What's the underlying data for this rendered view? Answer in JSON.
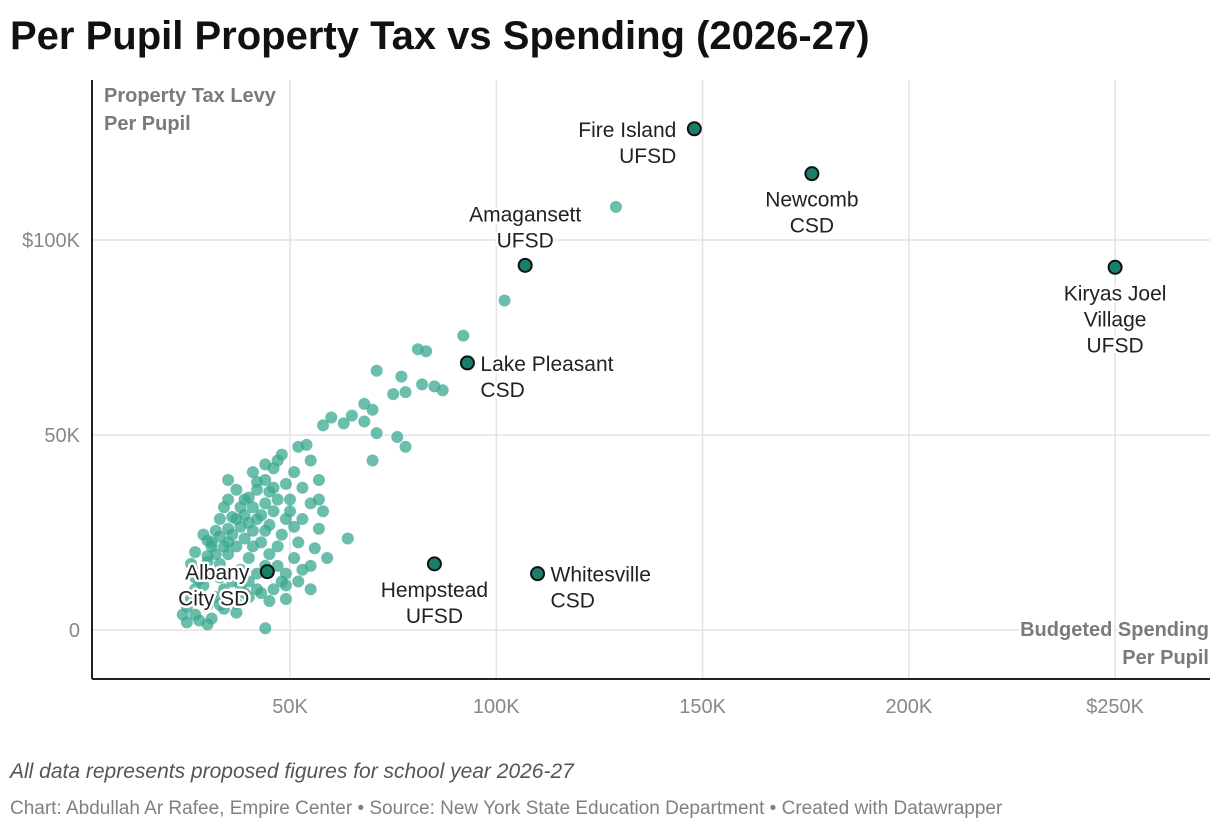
{
  "title": "Per Pupil Property Tax vs Spending (2026-27)",
  "footnote": "All data represents proposed figures for school year 2026-27",
  "credits": "Chart: Abdullah Ar Rafee, Empire Center • Source: New York State Education Department • Created with Datawrapper",
  "chart_data": {
    "type": "scatter",
    "x_axis": {
      "label_lines": [
        "Budgeted Spending",
        "Per Pupil"
      ],
      "range": [
        2000,
        273000
      ],
      "ticks": [
        50000,
        100000,
        150000,
        200000,
        250000
      ],
      "tick_labels": [
        "50K",
        "100K",
        "150K",
        "200K",
        "$250K"
      ]
    },
    "y_axis": {
      "label_lines": [
        "Property Tax Levy",
        "Per Pupil"
      ],
      "range": [
        -12500,
        141000
      ],
      "ticks": [
        0,
        50000,
        100000
      ],
      "tick_labels": [
        "0",
        "50K",
        "$100K"
      ]
    },
    "grid": true,
    "colors": {
      "point": "#3aa890",
      "highlight": "#1a7f68",
      "highlight_stroke": "#111111",
      "grid": "#e3e3e3",
      "axis": "#222222"
    },
    "highlighted": [
      {
        "name_lines": [
          "Fire Island",
          "UFSD"
        ],
        "x": 148000,
        "y": 128500,
        "label_pos": "left"
      },
      {
        "name_lines": [
          "Newcomb",
          "CSD"
        ],
        "x": 176500,
        "y": 117000,
        "label_pos": "below"
      },
      {
        "name_lines": [
          "Kiryas Joel",
          "Village",
          "UFSD"
        ],
        "x": 250000,
        "y": 93000,
        "label_pos": "below"
      },
      {
        "name_lines": [
          "Amagansett",
          "UFSD"
        ],
        "x": 107000,
        "y": 93500,
        "label_pos": "above"
      },
      {
        "name_lines": [
          "Lake Pleasant",
          "CSD"
        ],
        "x": 93000,
        "y": 68500,
        "label_pos": "right"
      },
      {
        "name_lines": [
          "Albany",
          "City SD"
        ],
        "x": 44500,
        "y": 15000,
        "label_pos": "left"
      },
      {
        "name_lines": [
          "Hempstead",
          "UFSD"
        ],
        "x": 85000,
        "y": 17000,
        "label_pos": "below"
      },
      {
        "name_lines": [
          "Whitesville",
          "CSD"
        ],
        "x": 110000,
        "y": 14500,
        "label_pos": "right"
      }
    ],
    "points": [
      [
        129000,
        108500
      ],
      [
        102000,
        84500
      ],
      [
        92000,
        75500
      ],
      [
        81000,
        72000
      ],
      [
        83000,
        71500
      ],
      [
        71000,
        66500
      ],
      [
        77000,
        65000
      ],
      [
        82000,
        63000
      ],
      [
        85000,
        62500
      ],
      [
        87000,
        61500
      ],
      [
        75000,
        60500
      ],
      [
        78000,
        61000
      ],
      [
        68000,
        58000
      ],
      [
        70000,
        56500
      ],
      [
        65000,
        55000
      ],
      [
        60000,
        54500
      ],
      [
        58000,
        52500
      ],
      [
        63000,
        53000
      ],
      [
        68000,
        53500
      ],
      [
        71000,
        50500
      ],
      [
        76000,
        49500
      ],
      [
        78000,
        47000
      ],
      [
        70000,
        43500
      ],
      [
        64000,
        23500
      ],
      [
        57000,
        33500
      ],
      [
        57000,
        38500
      ],
      [
        55000,
        43500
      ],
      [
        54000,
        47500
      ],
      [
        52000,
        47000
      ],
      [
        48000,
        45000
      ],
      [
        46000,
        41500
      ],
      [
        44000,
        38500
      ],
      [
        42000,
        36000
      ],
      [
        40000,
        34000
      ],
      [
        38000,
        31500
      ],
      [
        36000,
        29000
      ],
      [
        35000,
        26000
      ],
      [
        33000,
        24000
      ],
      [
        31000,
        21500
      ],
      [
        30000,
        19000
      ],
      [
        29000,
        16000
      ],
      [
        28000,
        13000
      ],
      [
        27000,
        10500
      ],
      [
        26000,
        8000
      ],
      [
        25000,
        6000
      ],
      [
        24000,
        4000
      ],
      [
        25000,
        2000
      ],
      [
        30000,
        1500
      ],
      [
        44000,
        500
      ],
      [
        27000,
        4000
      ],
      [
        28000,
        2500
      ],
      [
        31000,
        3000
      ],
      [
        34000,
        5500
      ],
      [
        37000,
        7000
      ],
      [
        40000,
        8500
      ],
      [
        43000,
        9500
      ],
      [
        46000,
        10500
      ],
      [
        49000,
        11500
      ],
      [
        52000,
        12500
      ],
      [
        55000,
        10500
      ],
      [
        49000,
        8000
      ],
      [
        55000,
        16500
      ],
      [
        59000,
        18500
      ],
      [
        56000,
        21000
      ],
      [
        52000,
        22500
      ],
      [
        48000,
        24500
      ],
      [
        45000,
        27000
      ],
      [
        43000,
        29500
      ],
      [
        41000,
        31500
      ],
      [
        39000,
        33500
      ],
      [
        37000,
        36000
      ],
      [
        35000,
        38500
      ],
      [
        41000,
        40500
      ],
      [
        44000,
        42500
      ],
      [
        47000,
        43500
      ],
      [
        51000,
        40500
      ],
      [
        53000,
        36500
      ],
      [
        55000,
        32500
      ],
      [
        58000,
        30500
      ],
      [
        57000,
        26000
      ],
      [
        53000,
        28500
      ],
      [
        50000,
        30500
      ],
      [
        47000,
        33500
      ],
      [
        45000,
        35500
      ],
      [
        42000,
        38000
      ],
      [
        33000,
        28500
      ],
      [
        29000,
        24500
      ],
      [
        27000,
        20000
      ],
      [
        26000,
        17000
      ],
      [
        31000,
        14500
      ],
      [
        33000,
        17000
      ],
      [
        35000,
        19500
      ],
      [
        37000,
        21500
      ],
      [
        39000,
        23500
      ],
      [
        41000,
        25500
      ],
      [
        43000,
        22500
      ],
      [
        45000,
        19500
      ],
      [
        47000,
        16500
      ],
      [
        49000,
        14500
      ],
      [
        51000,
        18500
      ],
      [
        47000,
        21500
      ],
      [
        44000,
        25500
      ],
      [
        40000,
        18500
      ],
      [
        38000,
        15500
      ],
      [
        36000,
        12500
      ],
      [
        34000,
        10500
      ],
      [
        32000,
        8500
      ],
      [
        30000,
        6500
      ],
      [
        29000,
        11500
      ],
      [
        31000,
        22500
      ],
      [
        34000,
        31500
      ],
      [
        38000,
        26500
      ],
      [
        42000,
        28500
      ],
      [
        46000,
        30500
      ],
      [
        50000,
        33500
      ],
      [
        49000,
        37500
      ],
      [
        46000,
        36500
      ],
      [
        36000,
        24500
      ],
      [
        34000,
        21500
      ],
      [
        40000,
        12500
      ],
      [
        42000,
        14500
      ],
      [
        44000,
        16500
      ],
      [
        39000,
        9500
      ],
      [
        36000,
        8500
      ],
      [
        33000,
        13500
      ],
      [
        32000,
        19500
      ],
      [
        35000,
        33500
      ],
      [
        37000,
        28500
      ],
      [
        39000,
        29500
      ],
      [
        41000,
        21500
      ],
      [
        30000,
        17500
      ],
      [
        28000,
        8500
      ],
      [
        27000,
        13500
      ],
      [
        33000,
        6500
      ],
      [
        37000,
        4500
      ],
      [
        38000,
        11500
      ],
      [
        42000,
        10500
      ],
      [
        45000,
        7500
      ],
      [
        48000,
        12500
      ],
      [
        53000,
        15500
      ],
      [
        51000,
        26500
      ],
      [
        49000,
        28500
      ],
      [
        44000,
        32500
      ],
      [
        40000,
        27500
      ],
      [
        35000,
        22500
      ],
      [
        32000,
        25500
      ],
      [
        30000,
        23000
      ]
    ]
  }
}
